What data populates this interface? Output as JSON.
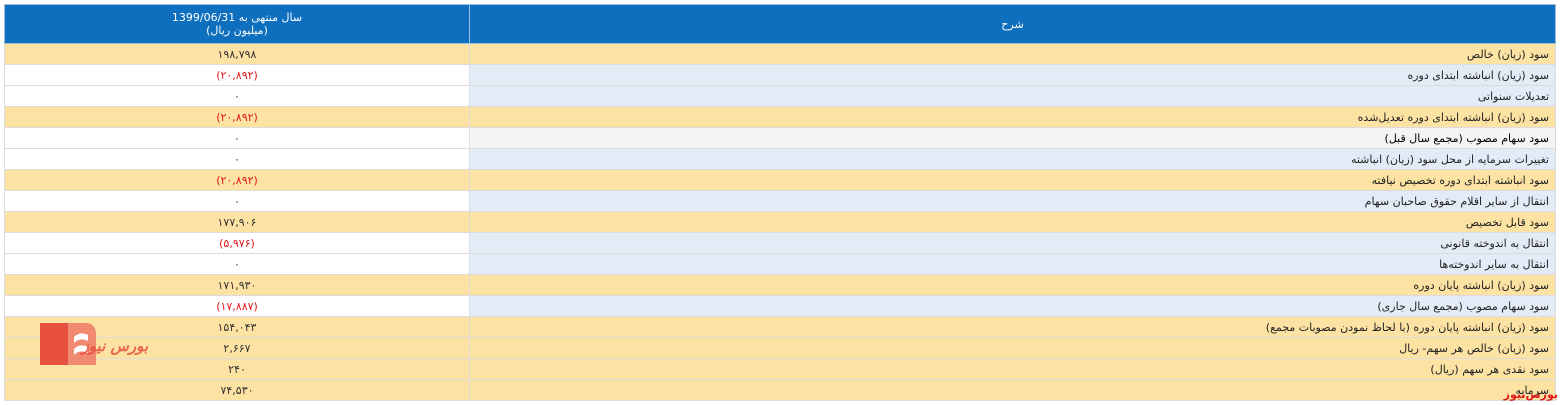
{
  "header": {
    "value_col_line1": "سال منتهی به 1399/06/31",
    "value_col_line2": "(میلیون ریال)",
    "desc_col": "شرح"
  },
  "rows": [
    {
      "desc": "سود (زیان) خالص",
      "value": "۱۹۸,۷۹۸",
      "style": "hl",
      "negative": false
    },
    {
      "desc": "سود (زیان) انباشته ابتدای دوره",
      "value": "(۲۰,۸۹۲)",
      "style": "pl",
      "negative": true
    },
    {
      "desc": "تعدیلات سنواتی",
      "value": "۰",
      "style": "pl",
      "negative": false
    },
    {
      "desc": "سود (زیان) انباشته ابتدای دوره تعدیل‌شده",
      "value": "(۲۰,۸۹۲)",
      "style": "hl",
      "negative": true
    },
    {
      "desc": "سود سهام مصوب (مجمع سال قبل)",
      "value": "۰",
      "style": "gr",
      "negative": false
    },
    {
      "desc": "تغییرات سرمایه از محل سود (زیان) انباشته",
      "value": "۰",
      "style": "pl",
      "negative": false
    },
    {
      "desc": "سود انباشته ابتدای دوره تخصیص نیافته",
      "value": "(۲۰,۸۹۲)",
      "style": "hl",
      "negative": true
    },
    {
      "desc": "انتقال از سایر اقلام حقوق صاحبان سهام",
      "value": "۰",
      "style": "pl",
      "negative": false
    },
    {
      "desc": "سود قابل تخصیص",
      "value": "۱۷۷,۹۰۶",
      "style": "hl",
      "negative": false
    },
    {
      "desc": "انتقال به اندوخته قانونی",
      "value": "(۵,۹۷۶)",
      "style": "pl",
      "negative": true
    },
    {
      "desc": "انتقال به سایر اندوخته‌ها",
      "value": "۰",
      "style": "pl",
      "negative": false
    },
    {
      "desc": "سود (زیان) انباشته پایان دوره",
      "value": "۱۷۱,۹۳۰",
      "style": "hl",
      "negative": false
    },
    {
      "desc": "سود سهام مصوب (مجمع سال جاری)",
      "value": "(۱۷,۸۸۷)",
      "style": "pl",
      "negative": true
    },
    {
      "desc": "سود (زیان) انباشته پایان دوره (با لحاظ نمودن مصوبات مجمع)",
      "value": "۱۵۴,۰۴۳",
      "style": "hl",
      "negative": false
    },
    {
      "desc": "سود (زیان) خالص هر سهم- ریال",
      "value": "۲,۶۶۷",
      "style": "hl",
      "negative": false
    },
    {
      "desc": "سود نقدی هر سهم (ریال)",
      "value": "۲۴۰",
      "style": "hl",
      "negative": false
    },
    {
      "desc": "سرمایه",
      "value": "۷۴,۵۳۰",
      "style": "hl",
      "negative": false
    }
  ],
  "logo_text": "بورس نیوز",
  "watermark": "بورس‌نیوز",
  "colors": {
    "header": "#0e6fbe",
    "highlight_row": "#fde3a3",
    "plain_desc": "#e3ebf7",
    "negative": "#e0181e",
    "logo": "#e8503f"
  }
}
